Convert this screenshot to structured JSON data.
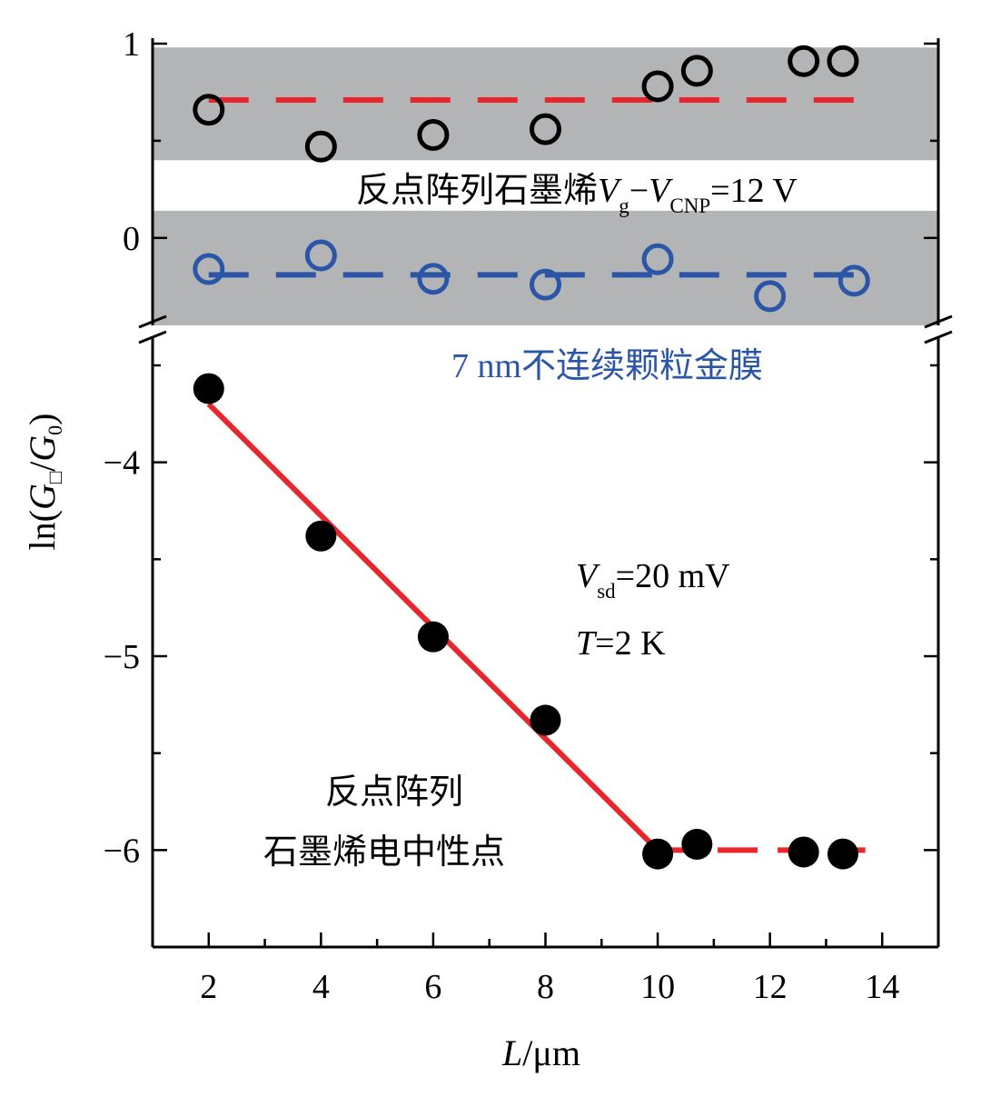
{
  "chart_data": {
    "type": "scatter",
    "xlabel_var": "L",
    "xlabel_unit": "/μm",
    "ylabel": {
      "prefix": "ln(",
      "g1": "G",
      "g1_sub": "□",
      "slash": "/",
      "g2": "G",
      "g2_sub": "0",
      "suffix": ")"
    },
    "xlim": [
      1,
      15
    ],
    "x_ticks": [
      2,
      4,
      6,
      8,
      10,
      12,
      14
    ],
    "y_ticks_upper": [
      {
        "value": 1,
        "label": "1"
      },
      {
        "value": 0,
        "label": "0"
      }
    ],
    "y_ticks_lower": [
      {
        "value": -4,
        "label": "−4"
      },
      {
        "value": -5,
        "label": "−5"
      },
      {
        "value": -6,
        "label": "−6"
      }
    ],
    "upper_ylim": [
      -0.45,
      1.0
    ],
    "lower_ylim": [
      -6.5,
      -3.35
    ],
    "axis_break": true,
    "shaded_bands": [
      {
        "from": 0.4,
        "to": 0.98
      },
      {
        "from": -0.45,
        "to": 0.14
      }
    ],
    "series": [
      {
        "name": "反点阵列石墨烯Vg−VCNP=12 V",
        "panel": "upper",
        "marker": "open-circle",
        "color": "#000000",
        "x": [
          2,
          4,
          6,
          8,
          10,
          10.7,
          12.6,
          13.3
        ],
        "y": [
          0.66,
          0.47,
          0.53,
          0.56,
          0.78,
          0.86,
          0.91,
          0.91
        ],
        "fit": {
          "style": "dashed",
          "color": "#e8262b",
          "x": [
            2,
            13.7
          ],
          "y": [
            0.71,
            0.71
          ]
        }
      },
      {
        "name": "7 nm不连续颗粒金膜",
        "panel": "upper",
        "marker": "open-circle",
        "color": "#2b56a8",
        "x": [
          2,
          4,
          6,
          8,
          10,
          12,
          13.5
        ],
        "y": [
          -0.16,
          -0.09,
          -0.21,
          -0.24,
          -0.11,
          -0.3,
          -0.22
        ],
        "fit": {
          "style": "dashed",
          "color": "#2b56a8",
          "x": [
            2,
            13.7
          ],
          "y": [
            -0.19,
            -0.19
          ]
        }
      },
      {
        "name": "反点阵列 石墨烯电中性点",
        "panel": "lower",
        "marker": "filled-circle",
        "color": "#000000",
        "x": [
          2,
          4,
          6,
          8,
          10,
          10.7,
          12.6,
          13.3
        ],
        "y": [
          -3.62,
          -4.38,
          -4.9,
          -5.33,
          -6.02,
          -5.97,
          -6.01,
          -6.02
        ],
        "fit_solid": {
          "color": "#e8262b",
          "x": [
            2,
            10
          ],
          "y": [
            -3.7,
            -6.0
          ]
        },
        "fit_dashed": {
          "color": "#e8262b",
          "x": [
            10,
            13.7
          ],
          "y": [
            -6.0,
            -6.0
          ]
        }
      }
    ],
    "annotations": {
      "upper_label": {
        "text": "反点阵列石墨烯",
        "v": "V",
        "v_sub": "g",
        "minus": "−",
        "v2": "V",
        "v2_sub": "CNP",
        "tail": "=12 V"
      },
      "blue_label": "7 nm不连续颗粒金膜",
      "vsd": {
        "v": "V",
        "sub": "sd",
        "tail": "=20 mV"
      },
      "temp": {
        "t": "T",
        "tail": "=2 K"
      },
      "cnp_line1": "反点阵列",
      "cnp_line2": "石墨烯电中性点"
    }
  }
}
